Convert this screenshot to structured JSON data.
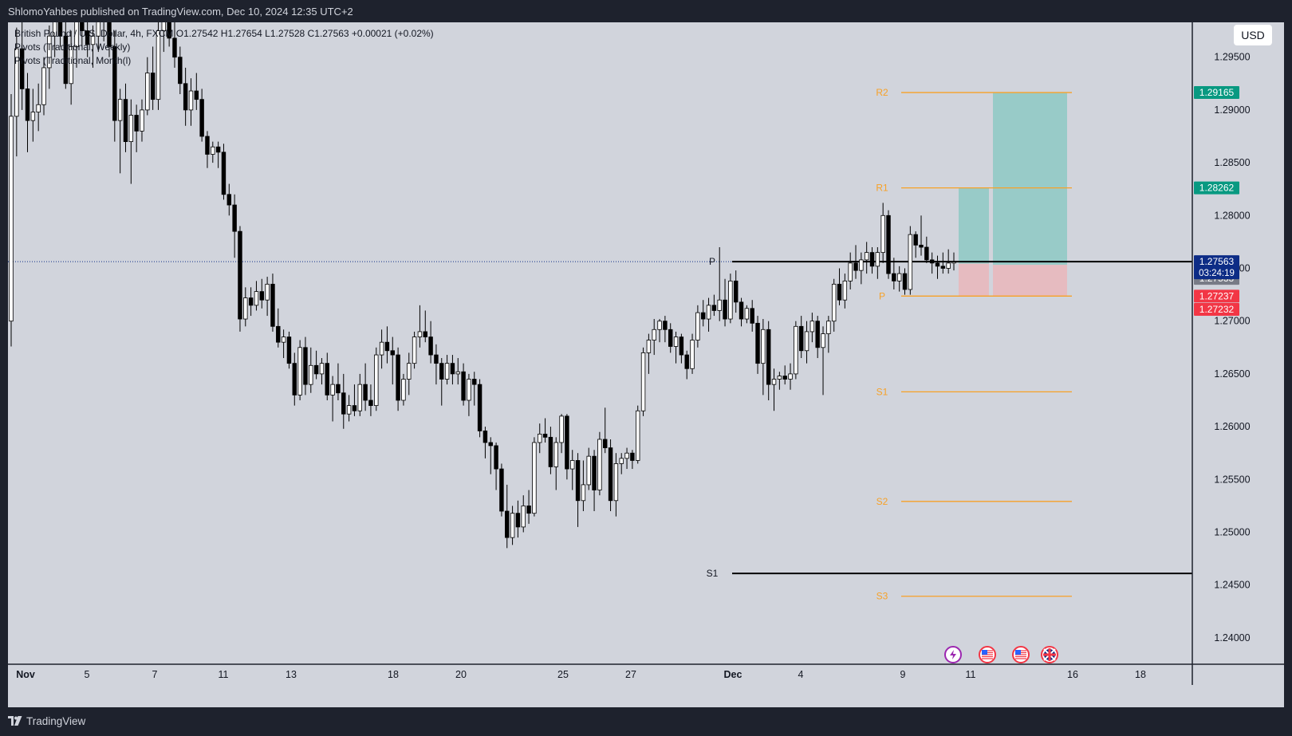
{
  "header": {
    "publish_info": "ShlomoYahbes published on TradingView.com, Dec 10, 2024 12:35 UTC+2"
  },
  "footer": {
    "brand": "TradingView"
  },
  "legend": {
    "symbol_line": "British Pound / U.S. Dollar, 4h, FXCM  O1.27542  H1.27654  L1.27528  C1.27563  +0.00021 (+0.02%)",
    "pivots_weekly": "Pivots (Traditional, Weekly)",
    "pivots_monthly": "Pivots (Traditional, Month(l)"
  },
  "currency_button": "USD",
  "price_badges": {
    "current_price": "1.27563",
    "countdown": "03:24:19"
  },
  "colors": {
    "background": "#d1d4dc",
    "frame": "#1e222d",
    "candle": "#000000",
    "pivot_weekly": "#f7a127",
    "pivot_monthly": "#000000",
    "target_zone": "#8ec9c4",
    "stop_zone": "#e8b8bd",
    "badge_teal": "#089981",
    "badge_red": "#f23645",
    "badge_gray": "#787b86",
    "badge_navy": "#0d2c86"
  },
  "event_icons": [
    "lightning-icon",
    "us-flag-icon",
    "us-flag-icon",
    "uk-flag-icon"
  ],
  "chart_data": {
    "type": "candlestick",
    "title": "British Pound / U.S. Dollar, 4h, FXCM",
    "ohlc_last": {
      "open": 1.27542,
      "high": 1.27654,
      "low": 1.27528,
      "close": 1.27563,
      "change": "+0.00021 (+0.02%)"
    },
    "y_axis": {
      "range": [
        1.2375,
        1.2983
      ],
      "ticks": [
        "1.24000",
        "1.24500",
        "1.25000",
        "1.25500",
        "1.26000",
        "1.26500",
        "1.27000",
        "1.27500",
        "1.28000",
        "1.28500",
        "1.29000",
        "1.29500"
      ]
    },
    "x_axis": {
      "ticks": [
        "Nov",
        "5",
        "7",
        "11",
        "13",
        "18",
        "20",
        "25",
        "27",
        "Dec",
        "4",
        "9",
        "11",
        "16",
        "18"
      ]
    },
    "weekly_pivots": [
      {
        "label": "R2",
        "value": 1.29165
      },
      {
        "label": "R1",
        "value": 1.28262
      },
      {
        "label": "P",
        "value": 1.27237
      },
      {
        "label": "S1",
        "value": 1.2633
      },
      {
        "label": "S2",
        "value": 1.25292
      },
      {
        "label": "S3",
        "value": 1.24394
      }
    ],
    "monthly_pivots": [
      {
        "label": "P",
        "value": 1.27563
      },
      {
        "label": "S1",
        "value": 1.2461
      }
    ],
    "price_labels": [
      {
        "value": "1.29165",
        "kind": "teal"
      },
      {
        "value": "1.28262",
        "kind": "teal"
      },
      {
        "value": "1.27544",
        "kind": "gray"
      },
      {
        "value": "1.27533",
        "kind": "gray"
      },
      {
        "value": "1.27237",
        "kind": "red"
      },
      {
        "value": "1.27232",
        "kind": "red"
      }
    ],
    "long_positions": [
      {
        "entry": 1.27544,
        "stop": 1.27237,
        "target": 1.28262
      },
      {
        "entry": 1.27533,
        "stop": 1.27232,
        "target": 1.29165
      }
    ],
    "candles": [
      [
        1.27,
        1.2915,
        1.2676,
        1.2894
      ],
      [
        1.2894,
        1.2978,
        1.2856,
        1.2958
      ],
      [
        1.2958,
        1.301,
        1.29,
        1.292
      ],
      [
        1.292,
        1.2935,
        1.286,
        1.289
      ],
      [
        1.289,
        1.292,
        1.287,
        1.2898
      ],
      [
        1.2898,
        1.2925,
        1.288,
        1.2905
      ],
      [
        1.2905,
        1.295,
        1.2895,
        1.294
      ],
      [
        1.294,
        1.298,
        1.292,
        1.297
      ],
      [
        1.297,
        1.301,
        1.295,
        1.2985
      ],
      [
        1.2985,
        1.302,
        1.296,
        1.297
      ],
      [
        1.297,
        1.299,
        1.292,
        1.2925
      ],
      [
        1.2925,
        1.2975,
        1.2905,
        1.296
      ],
      [
        1.296,
        1.3,
        1.294,
        1.2985
      ],
      [
        1.2985,
        1.303,
        1.296,
        1.2975
      ],
      [
        1.2975,
        1.2995,
        1.295,
        1.2962
      ],
      [
        1.2962,
        1.298,
        1.294,
        1.297
      ],
      [
        1.297,
        1.3015,
        1.2955,
        1.3
      ],
      [
        1.3,
        1.302,
        1.2965,
        1.299
      ],
      [
        1.299,
        1.301,
        1.295,
        1.296
      ],
      [
        1.296,
        1.2975,
        1.287,
        1.289
      ],
      [
        1.289,
        1.292,
        1.284,
        1.291
      ],
      [
        1.291,
        1.2925,
        1.286,
        1.287
      ],
      [
        1.287,
        1.291,
        1.283,
        1.2895
      ],
      [
        1.2895,
        1.2905,
        1.286,
        1.288
      ],
      [
        1.288,
        1.291,
        1.287,
        1.29
      ],
      [
        1.29,
        1.295,
        1.2895,
        1.2935
      ],
      [
        1.2935,
        1.296,
        1.29,
        1.291
      ],
      [
        1.291,
        1.299,
        1.29,
        1.2975
      ],
      [
        1.2975,
        1.3005,
        1.2955,
        1.299
      ],
      [
        1.299,
        1.3,
        1.296,
        1.2968
      ],
      [
        1.2968,
        1.2985,
        1.294,
        1.295
      ],
      [
        1.295,
        1.296,
        1.2915,
        1.2925
      ],
      [
        1.2925,
        1.294,
        1.2885,
        1.29
      ],
      [
        1.29,
        1.293,
        1.2885,
        1.2918
      ],
      [
        1.2918,
        1.2935,
        1.29,
        1.291
      ],
      [
        1.291,
        1.292,
        1.287,
        1.2875
      ],
      [
        1.2875,
        1.288,
        1.2845,
        1.2858
      ],
      [
        1.2858,
        1.287,
        1.285,
        1.2865
      ],
      [
        1.2865,
        1.287,
        1.2845,
        1.286
      ],
      [
        1.286,
        1.2868,
        1.2815,
        1.282
      ],
      [
        1.282,
        1.283,
        1.28,
        1.281
      ],
      [
        1.281,
        1.282,
        1.276,
        1.2785
      ],
      [
        1.2785,
        1.279,
        1.269,
        1.2702
      ],
      [
        1.2702,
        1.2732,
        1.2695,
        1.2722
      ],
      [
        1.2722,
        1.2732,
        1.2705,
        1.2715
      ],
      [
        1.2715,
        1.2738,
        1.271,
        1.2728
      ],
      [
        1.2728,
        1.274,
        1.2712,
        1.272
      ],
      [
        1.272,
        1.2742,
        1.2705,
        1.2735
      ],
      [
        1.2735,
        1.2745,
        1.269,
        1.2695
      ],
      [
        1.2695,
        1.2712,
        1.2675,
        1.268
      ],
      [
        1.268,
        1.2692,
        1.2665,
        1.2685
      ],
      [
        1.2685,
        1.269,
        1.2655,
        1.266
      ],
      [
        1.266,
        1.267,
        1.262,
        1.263
      ],
      [
        1.263,
        1.2682,
        1.2625,
        1.2675
      ],
      [
        1.2675,
        1.2685,
        1.263,
        1.264
      ],
      [
        1.264,
        1.2675,
        1.2632,
        1.2658
      ],
      [
        1.2658,
        1.2672,
        1.2645,
        1.265
      ],
      [
        1.265,
        1.2665,
        1.264,
        1.266
      ],
      [
        1.266,
        1.267,
        1.2625,
        1.263
      ],
      [
        1.263,
        1.2648,
        1.2605,
        1.264
      ],
      [
        1.264,
        1.266,
        1.2625,
        1.2632
      ],
      [
        1.2632,
        1.265,
        1.2598,
        1.2612
      ],
      [
        1.2612,
        1.263,
        1.2605,
        1.262
      ],
      [
        1.262,
        1.264,
        1.261,
        1.2615
      ],
      [
        1.2615,
        1.265,
        1.261,
        1.264
      ],
      [
        1.264,
        1.266,
        1.2615,
        1.2625
      ],
      [
        1.2625,
        1.264,
        1.261,
        1.262
      ],
      [
        1.262,
        1.2675,
        1.2615,
        1.2668
      ],
      [
        1.2668,
        1.2692,
        1.2655,
        1.268
      ],
      [
        1.268,
        1.2695,
        1.266,
        1.2672
      ],
      [
        1.2672,
        1.2685,
        1.264,
        1.2668
      ],
      [
        1.2668,
        1.2675,
        1.2615,
        1.2625
      ],
      [
        1.2625,
        1.265,
        1.262,
        1.2645
      ],
      [
        1.2645,
        1.267,
        1.263,
        1.266
      ],
      [
        1.266,
        1.269,
        1.2655,
        1.2685
      ],
      [
        1.2685,
        1.2715,
        1.2675,
        1.269
      ],
      [
        1.269,
        1.271,
        1.268,
        1.2685
      ],
      [
        1.2685,
        1.27,
        1.266,
        1.2668
      ],
      [
        1.2668,
        1.2678,
        1.264,
        1.266
      ],
      [
        1.266,
        1.2665,
        1.262,
        1.2645
      ],
      [
        1.2645,
        1.2668,
        1.264,
        1.266
      ],
      [
        1.266,
        1.2668,
        1.264,
        1.265
      ],
      [
        1.265,
        1.2665,
        1.264,
        1.2652
      ],
      [
        1.2652,
        1.266,
        1.262,
        1.2625
      ],
      [
        1.2625,
        1.265,
        1.261,
        1.2645
      ],
      [
        1.2645,
        1.2652,
        1.262,
        1.264
      ],
      [
        1.264,
        1.2645,
        1.259,
        1.2596
      ],
      [
        1.2596,
        1.26,
        1.257,
        1.2585
      ],
      [
        1.2585,
        1.259,
        1.2555,
        1.2582
      ],
      [
        1.2582,
        1.2585,
        1.254,
        1.256
      ],
      [
        1.256,
        1.2565,
        1.2515,
        1.252
      ],
      [
        1.252,
        1.2545,
        1.2485,
        1.2495
      ],
      [
        1.2495,
        1.2525,
        1.2488,
        1.2518
      ],
      [
        1.2518,
        1.253,
        1.2495,
        1.2505
      ],
      [
        1.2505,
        1.2535,
        1.25,
        1.2525
      ],
      [
        1.2525,
        1.254,
        1.2508,
        1.2518
      ],
      [
        1.2518,
        1.259,
        1.2515,
        1.2585
      ],
      [
        1.2585,
        1.2603,
        1.2575,
        1.2593
      ],
      [
        1.2593,
        1.2608,
        1.2585,
        1.259
      ],
      [
        1.259,
        1.26,
        1.2555,
        1.2562
      ],
      [
        1.2562,
        1.259,
        1.254,
        1.2585
      ],
      [
        1.2585,
        1.2612,
        1.2575,
        1.261
      ],
      [
        1.261,
        1.2612,
        1.255,
        1.256
      ],
      [
        1.256,
        1.2578,
        1.254,
        1.2568
      ],
      [
        1.2568,
        1.2575,
        1.2505,
        1.253
      ],
      [
        1.253,
        1.2568,
        1.252,
        1.2545
      ],
      [
        1.2545,
        1.258,
        1.254,
        1.2572
      ],
      [
        1.2572,
        1.2578,
        1.252,
        1.254
      ],
      [
        1.254,
        1.2595,
        1.2535,
        1.2588
      ],
      [
        1.2588,
        1.2618,
        1.2575,
        1.258
      ],
      [
        1.258,
        1.2588,
        1.252,
        1.253
      ],
      [
        1.253,
        1.2575,
        1.2515,
        1.2565
      ],
      [
        1.2565,
        1.2575,
        1.2555,
        1.257
      ],
      [
        1.257,
        1.258,
        1.256,
        1.2575
      ],
      [
        1.2575,
        1.2578,
        1.256,
        1.2568
      ],
      [
        1.2568,
        1.262,
        1.2565,
        1.2615
      ],
      [
        1.2615,
        1.2675,
        1.261,
        1.267
      ],
      [
        1.267,
        1.2688,
        1.265,
        1.2682
      ],
      [
        1.2682,
        1.2702,
        1.2668,
        1.2692
      ],
      [
        1.2692,
        1.2702,
        1.268,
        1.27
      ],
      [
        1.27,
        1.2705,
        1.268,
        1.2692
      ],
      [
        1.2692,
        1.2698,
        1.267,
        1.2676
      ],
      [
        1.2676,
        1.269,
        1.266,
        1.2685
      ],
      [
        1.2685,
        1.2688,
        1.266,
        1.2668
      ],
      [
        1.2668,
        1.2672,
        1.2645,
        1.2655
      ],
      [
        1.2655,
        1.2688,
        1.265,
        1.2682
      ],
      [
        1.2682,
        1.2715,
        1.2675,
        1.2708
      ],
      [
        1.2708,
        1.272,
        1.2695,
        1.2702
      ],
      [
        1.2702,
        1.2722,
        1.269,
        1.2715
      ],
      [
        1.2715,
        1.2725,
        1.2705,
        1.271
      ],
      [
        1.271,
        1.277,
        1.27,
        1.272
      ],
      [
        1.272,
        1.274,
        1.2695,
        1.2702
      ],
      [
        1.2702,
        1.2745,
        1.2698,
        1.2738
      ],
      [
        1.2738,
        1.2748,
        1.2708,
        1.2718
      ],
      [
        1.2718,
        1.2722,
        1.2695,
        1.2702
      ],
      [
        1.2702,
        1.2715,
        1.2698,
        1.2712
      ],
      [
        1.2712,
        1.272,
        1.269,
        1.2698
      ],
      [
        1.2698,
        1.2705,
        1.265,
        1.266
      ],
      [
        1.266,
        1.2702,
        1.263,
        1.2692
      ],
      [
        1.2692,
        1.27,
        1.2625,
        1.264
      ],
      [
        1.264,
        1.2655,
        1.2615,
        1.2645
      ],
      [
        1.2645,
        1.2652,
        1.2635,
        1.2648
      ],
      [
        1.2648,
        1.2658,
        1.264,
        1.2645
      ],
      [
        1.2645,
        1.266,
        1.2635,
        1.265
      ],
      [
        1.265,
        1.27,
        1.2645,
        1.2695
      ],
      [
        1.2695,
        1.2705,
        1.2665,
        1.2672
      ],
      [
        1.2672,
        1.27,
        1.266,
        1.269
      ],
      [
        1.269,
        1.2708,
        1.268,
        1.27
      ],
      [
        1.27,
        1.2705,
        1.2665,
        1.2675
      ],
      [
        1.2675,
        1.2695,
        1.263,
        1.2688
      ],
      [
        1.2688,
        1.2705,
        1.267,
        1.27
      ],
      [
        1.27,
        1.274,
        1.269,
        1.2735
      ],
      [
        1.2735,
        1.275,
        1.2715,
        1.272
      ],
      [
        1.272,
        1.2745,
        1.2712,
        1.2738
      ],
      [
        1.2738,
        1.2765,
        1.273,
        1.2755
      ],
      [
        1.2755,
        1.2772,
        1.274,
        1.2748
      ],
      [
        1.2748,
        1.2765,
        1.2735,
        1.2758
      ],
      [
        1.2758,
        1.2775,
        1.2745,
        1.2765
      ],
      [
        1.2765,
        1.277,
        1.2745,
        1.2752
      ],
      [
        1.2752,
        1.277,
        1.274,
        1.2765
      ],
      [
        1.2765,
        1.2812,
        1.2755,
        1.28
      ],
      [
        1.28,
        1.2805,
        1.274,
        1.2745
      ],
      [
        1.2745,
        1.276,
        1.273,
        1.2738
      ],
      [
        1.2738,
        1.2752,
        1.2728,
        1.2745
      ],
      [
        1.2745,
        1.275,
        1.2725,
        1.273
      ],
      [
        1.273,
        1.279,
        1.2725,
        1.2782
      ],
      [
        1.2782,
        1.2785,
        1.276,
        1.2772
      ],
      [
        1.2772,
        1.28,
        1.2762,
        1.277
      ],
      [
        1.277,
        1.278,
        1.2755,
        1.2758
      ],
      [
        1.2758,
        1.2765,
        1.2745,
        1.2755
      ],
      [
        1.2755,
        1.2762,
        1.274,
        1.2752
      ],
      [
        1.2752,
        1.2765,
        1.2745,
        1.275
      ],
      [
        1.275,
        1.2768,
        1.2745,
        1.2755
      ],
      [
        1.2755,
        1.2765,
        1.2748,
        1.2756
      ]
    ]
  }
}
